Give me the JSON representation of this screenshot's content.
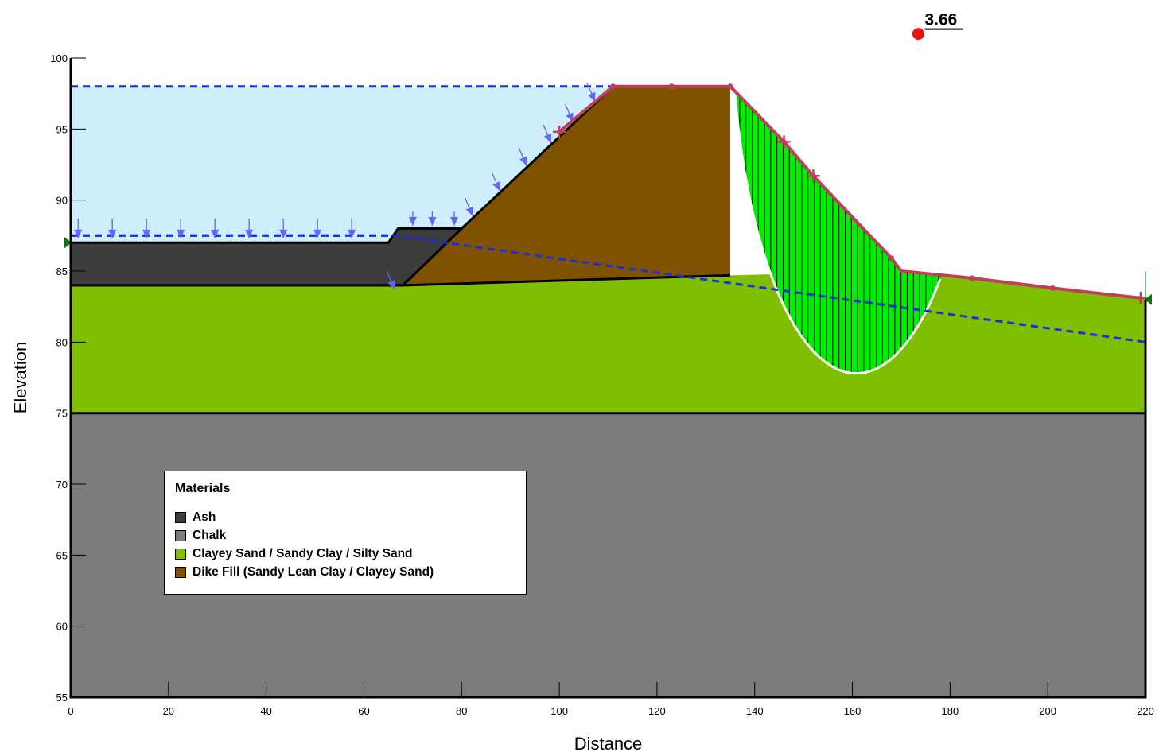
{
  "x_axis": {
    "title": "Distance",
    "ticks": [
      "0",
      "20",
      "40",
      "60",
      "80",
      "100",
      "120",
      "140",
      "160",
      "180",
      "200",
      "220"
    ],
    "range": [
      0,
      220
    ]
  },
  "y_axis": {
    "title": "Elevation",
    "ticks": [
      "55",
      "60",
      "65",
      "70",
      "75",
      "80",
      "85",
      "90",
      "95",
      "100"
    ],
    "range": [
      55,
      100
    ]
  },
  "factor_of_safety": {
    "value": "3.66",
    "center": [
      173.5,
      101.7
    ],
    "color": "#ee1111"
  },
  "legend": {
    "title": "Materials",
    "items": [
      {
        "label": "Ash",
        "color": "#3d3d3d"
      },
      {
        "label": "Chalk",
        "color": "#7b7b7b"
      },
      {
        "label": "Clayey Sand / Sandy Clay / Silty Sand",
        "color": "#80bf00"
      },
      {
        "label": "Dike Fill (Sandy Lean Clay / Clayey Sand)",
        "color": "#7f5200"
      }
    ]
  },
  "colors": {
    "ponded_water": "#cdeefa",
    "slip_mass": "#00ee00",
    "slip_surface": "#ffffff",
    "ground_surface": "#c0405a",
    "water_table": "#1a30d8",
    "load_arrows": "#6464ff",
    "support": "#0a7a0a"
  },
  "geometry": {
    "chalk": [
      [
        0,
        75
      ],
      [
        220,
        75
      ],
      [
        220,
        55
      ],
      [
        0,
        55
      ]
    ],
    "clayey_sand": [
      [
        0,
        84
      ],
      [
        68,
        84
      ],
      [
        135,
        84.7
      ],
      [
        170,
        85
      ],
      [
        184.5,
        84.5
      ],
      [
        201,
        83.8
      ],
      [
        220,
        83
      ]
    ],
    "ash": [
      [
        0,
        84
      ],
      [
        0,
        87
      ],
      [
        65,
        87
      ],
      [
        67,
        88
      ],
      [
        80,
        88
      ],
      [
        68,
        84
      ]
    ],
    "dike_fill": [
      [
        68,
        84
      ],
      [
        80,
        88
      ],
      [
        111,
        98
      ],
      [
        135,
        98
      ],
      [
        135,
        84.7
      ]
    ],
    "ground_surface": [
      [
        100,
        94.8
      ],
      [
        111,
        98
      ],
      [
        123,
        98
      ],
      [
        135,
        98
      ],
      [
        146,
        94.1
      ],
      [
        152,
        91.7
      ],
      [
        168,
        85.9
      ],
      [
        170,
        85
      ],
      [
        184.5,
        84.5
      ],
      [
        201,
        83.8
      ],
      [
        219,
        83.1
      ]
    ],
    "ground_surface_markers": [
      [
        100,
        94.8
      ],
      [
        146,
        94.1
      ],
      [
        152,
        91.7
      ],
      [
        219,
        83.1
      ]
    ],
    "ground_surface_nodes": [
      [
        111,
        98
      ],
      [
        123,
        98
      ],
      [
        135,
        98
      ],
      [
        168,
        85.9
      ],
      [
        184.5,
        84.5
      ],
      [
        201,
        83.8
      ]
    ],
    "water_level_pond": 98,
    "water_level_flat": 87.5,
    "phreatic": [
      [
        0,
        87.5
      ],
      [
        66.5,
        87.5
      ],
      [
        220,
        80
      ]
    ],
    "slip_circle": {
      "center": [
        160.8,
        103.3
      ],
      "radius": 25.5
    },
    "slip_entry_x": 123,
    "slip_exit_x": 184.5
  }
}
